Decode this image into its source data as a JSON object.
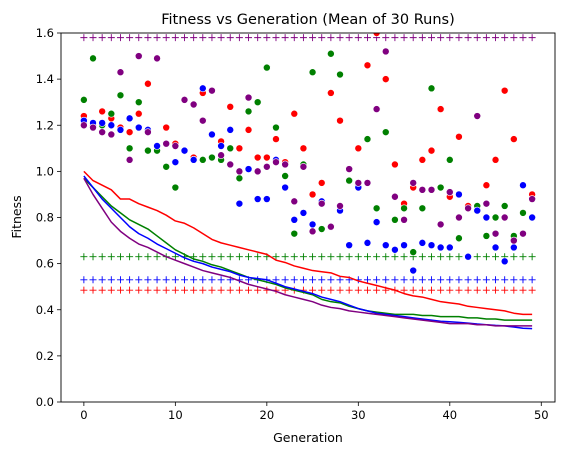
{
  "chart_data": {
    "type": "scatter",
    "title": "Fitness vs Generation (Mean of 30 Runs)",
    "xlabel": "Generation",
    "ylabel": "Fitness",
    "xlim": [
      -2.5,
      51.5
    ],
    "ylim": [
      0.0,
      1.6
    ],
    "xticks": [
      0,
      10,
      20,
      30,
      40,
      50
    ],
    "yticks": [
      0.0,
      0.2,
      0.4,
      0.6,
      0.8,
      1.0,
      1.2,
      1.4,
      1.6
    ],
    "grid": false,
    "legend": "none",
    "colors": {
      "blue": "#0000ff",
      "green": "#008000",
      "red": "#ff0000",
      "purple": "#800080"
    },
    "plus_levels": [
      {
        "color": "purple",
        "y": 1.58
      },
      {
        "color": "green",
        "y": 0.63
      },
      {
        "color": "blue",
        "y": 0.53
      },
      {
        "color": "red",
        "y": 0.485
      }
    ],
    "lines": [
      {
        "color": "red",
        "values": [
          1.0,
          0.96,
          0.94,
          0.92,
          0.88,
          0.88,
          0.86,
          0.845,
          0.83,
          0.81,
          0.785,
          0.775,
          0.755,
          0.73,
          0.705,
          0.69,
          0.68,
          0.67,
          0.66,
          0.65,
          0.64,
          0.615,
          0.605,
          0.59,
          0.58,
          0.57,
          0.565,
          0.56,
          0.545,
          0.54,
          0.525,
          0.515,
          0.505,
          0.495,
          0.485,
          0.47,
          0.46,
          0.455,
          0.445,
          0.435,
          0.43,
          0.425,
          0.415,
          0.41,
          0.405,
          0.4,
          0.395,
          0.385,
          0.38,
          0.38
        ]
      },
      {
        "color": "green",
        "values": [
          0.97,
          0.93,
          0.89,
          0.85,
          0.82,
          0.79,
          0.77,
          0.75,
          0.72,
          0.69,
          0.66,
          0.64,
          0.62,
          0.61,
          0.595,
          0.585,
          0.57,
          0.555,
          0.54,
          0.53,
          0.52,
          0.51,
          0.495,
          0.485,
          0.475,
          0.465,
          0.445,
          0.435,
          0.43,
          0.415,
          0.405,
          0.395,
          0.39,
          0.385,
          0.38,
          0.38,
          0.38,
          0.375,
          0.375,
          0.37,
          0.37,
          0.37,
          0.365,
          0.365,
          0.36,
          0.36,
          0.355,
          0.355,
          0.355,
          0.355
        ]
      },
      {
        "color": "blue",
        "values": [
          0.98,
          0.93,
          0.88,
          0.84,
          0.8,
          0.76,
          0.73,
          0.71,
          0.685,
          0.665,
          0.645,
          0.625,
          0.61,
          0.6,
          0.585,
          0.575,
          0.565,
          0.55,
          0.54,
          0.535,
          0.53,
          0.515,
          0.5,
          0.49,
          0.48,
          0.47,
          0.455,
          0.445,
          0.435,
          0.42,
          0.405,
          0.395,
          0.385,
          0.38,
          0.375,
          0.37,
          0.365,
          0.36,
          0.355,
          0.35,
          0.348,
          0.345,
          0.342,
          0.338,
          0.335,
          0.332,
          0.33,
          0.325,
          0.32,
          0.318
        ]
      },
      {
        "color": "purple",
        "values": [
          0.97,
          0.9,
          0.84,
          0.78,
          0.74,
          0.71,
          0.685,
          0.67,
          0.65,
          0.63,
          0.615,
          0.6,
          0.585,
          0.57,
          0.56,
          0.55,
          0.54,
          0.525,
          0.51,
          0.5,
          0.49,
          0.48,
          0.465,
          0.455,
          0.445,
          0.435,
          0.42,
          0.41,
          0.405,
          0.395,
          0.39,
          0.385,
          0.38,
          0.375,
          0.37,
          0.365,
          0.36,
          0.355,
          0.35,
          0.345,
          0.34,
          0.34,
          0.34,
          0.335,
          0.335,
          0.33,
          0.33,
          0.33,
          0.33,
          0.33
        ]
      }
    ],
    "points": [
      {
        "color": "red",
        "values": [
          1.24,
          1.2,
          1.26,
          1.23,
          1.19,
          1.17,
          1.25,
          1.38,
          1.11,
          1.19,
          1.12,
          1.09,
          1.06,
          1.34,
          1.06,
          1.13,
          1.28,
          1.1,
          1.18,
          1.06,
          1.06,
          1.14,
          1.04,
          1.25,
          1.1,
          0.9,
          0.95,
          1.34,
          1.22,
          0.96,
          1.1,
          1.46,
          1.6,
          1.4,
          1.03,
          0.86,
          0.93,
          1.05,
          1.09,
          1.27,
          0.89,
          1.15,
          0.85,
          0.83,
          0.94,
          1.05,
          1.35,
          1.14,
          0.82,
          0.9
        ]
      },
      {
        "color": "green",
        "values": [
          1.31,
          1.49,
          1.2,
          1.25,
          1.33,
          1.1,
          1.3,
          1.09,
          1.09,
          1.02,
          0.93,
          1.09,
          1.05,
          1.05,
          1.06,
          1.05,
          1.1,
          0.97,
          1.26,
          1.3,
          1.45,
          1.19,
          0.98,
          0.73,
          1.03,
          1.43,
          0.75,
          1.51,
          1.42,
          0.96,
          0.94,
          1.14,
          0.84,
          1.17,
          0.79,
          0.84,
          0.65,
          0.84,
          1.36,
          0.93,
          1.05,
          0.71,
          0.63,
          0.85,
          0.72,
          0.8,
          0.85,
          0.72,
          0.82,
          0.8
        ]
      },
      {
        "color": "blue",
        "values": [
          1.22,
          1.21,
          1.21,
          1.2,
          1.18,
          1.23,
          1.19,
          1.18,
          1.11,
          1.12,
          1.04,
          1.09,
          1.05,
          1.36,
          1.16,
          1.11,
          1.18,
          0.86,
          1.01,
          0.88,
          0.88,
          1.05,
          0.93,
          0.79,
          0.82,
          0.77,
          0.87,
          0.76,
          0.83,
          0.68,
          0.93,
          0.69,
          0.78,
          0.68,
          0.66,
          0.68,
          0.57,
          0.69,
          0.68,
          0.67,
          0.67,
          0.9,
          0.63,
          0.83,
          0.8,
          0.67,
          0.61,
          0.67,
          0.94,
          0.8
        ]
      },
      {
        "color": "purple",
        "values": [
          1.2,
          1.19,
          1.17,
          1.16,
          1.43,
          1.05,
          1.5,
          1.17,
          1.49,
          1.12,
          1.11,
          1.31,
          1.29,
          1.22,
          1.35,
          1.07,
          1.03,
          1.0,
          1.32,
          1.0,
          1.02,
          1.04,
          1.03,
          0.87,
          1.02,
          0.74,
          0.86,
          0.76,
          0.85,
          1.01,
          0.95,
          0.95,
          1.27,
          1.52,
          0.89,
          0.79,
          0.95,
          0.92,
          0.92,
          0.77,
          0.91,
          0.8,
          0.84,
          1.24,
          0.86,
          0.73,
          0.8,
          0.7,
          0.73,
          0.88
        ]
      }
    ]
  }
}
